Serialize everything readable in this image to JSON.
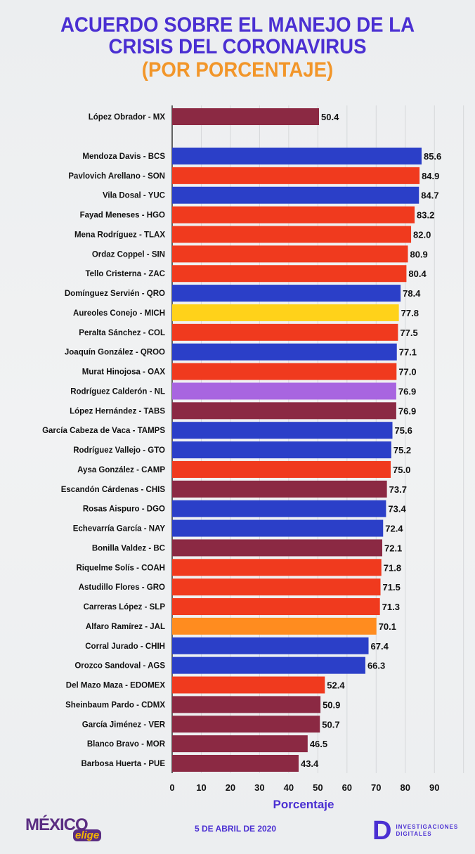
{
  "chart_data": {
    "type": "bar",
    "orientation": "horizontal",
    "title": [
      "ACUERDO SOBRE EL MANEJO DE LA",
      "CRISIS DEL CORONAVIRUS"
    ],
    "subtitle": "(POR PORCENTAJE)",
    "xlabel": "Porcentaje",
    "xlim": [
      0,
      90
    ],
    "xticks": [
      "0",
      "10",
      "20",
      "30",
      "40",
      "50",
      "60",
      "70",
      "80",
      "90"
    ],
    "grid": true,
    "highlight": {
      "label": "López Obrador - MX",
      "value": 50.4,
      "color": "#8b2943"
    },
    "bars": [
      {
        "label": "Mendoza Davis - BCS",
        "value": 85.6,
        "color": "#2b3fc8"
      },
      {
        "label": "Pavlovich Arellano - SON",
        "value": 84.9,
        "color": "#f03a1e"
      },
      {
        "label": "Vila Dosal - YUC",
        "value": 84.7,
        "color": "#2b3fc8"
      },
      {
        "label": "Fayad Meneses - HGO",
        "value": 83.2,
        "color": "#f03a1e"
      },
      {
        "label": "Mena Rodríguez - TLAX",
        "value": 82.0,
        "color": "#f03a1e"
      },
      {
        "label": "Ordaz Coppel - SIN",
        "value": 80.9,
        "color": "#f03a1e"
      },
      {
        "label": "Tello Cristerna - ZAC",
        "value": 80.4,
        "color": "#f03a1e"
      },
      {
        "label": "Domínguez Servién - QRO",
        "value": 78.4,
        "color": "#2b3fc8"
      },
      {
        "label": "Aureoles Conejo - MICH",
        "value": 77.8,
        "color": "#ffd21a"
      },
      {
        "label": "Peralta Sánchez - COL",
        "value": 77.5,
        "color": "#f03a1e"
      },
      {
        "label": "Joaquín González - QROO",
        "value": 77.1,
        "color": "#2b3fc8"
      },
      {
        "label": "Murat Hinojosa - OAX",
        "value": 77.0,
        "color": "#f03a1e"
      },
      {
        "label": "Rodríguez Calderón - NL",
        "value": 76.9,
        "color": "#a865e0"
      },
      {
        "label": "López Hernández - TABS",
        "value": 76.9,
        "color": "#8b2943"
      },
      {
        "label": "García Cabeza de Vaca - TAMPS",
        "value": 75.6,
        "color": "#2b3fc8"
      },
      {
        "label": "Rodríguez Vallejo - GTO",
        "value": 75.2,
        "color": "#2b3fc8"
      },
      {
        "label": "Aysa González - CAMP",
        "value": 75.0,
        "color": "#f03a1e"
      },
      {
        "label": "Escandón Cárdenas - CHIS",
        "value": 73.7,
        "color": "#8b2943"
      },
      {
        "label": "Rosas Aispuro - DGO",
        "value": 73.4,
        "color": "#2b3fc8"
      },
      {
        "label": "Echevarría García - NAY",
        "value": 72.4,
        "color": "#2b3fc8"
      },
      {
        "label": "Bonilla Valdez - BC",
        "value": 72.1,
        "color": "#8b2943"
      },
      {
        "label": "Riquelme Solís - COAH",
        "value": 71.8,
        "color": "#f03a1e"
      },
      {
        "label": "Astudillo Flores - GRO",
        "value": 71.5,
        "color": "#f03a1e"
      },
      {
        "label": "Carreras López - SLP",
        "value": 71.3,
        "color": "#f03a1e"
      },
      {
        "label": "Alfaro Ramírez - JAL",
        "value": 70.1,
        "color": "#ff8c1f"
      },
      {
        "label": "Corral Jurado - CHIH",
        "value": 67.4,
        "color": "#2b3fc8"
      },
      {
        "label": "Orozco Sandoval - AGS",
        "value": 66.3,
        "color": "#2b3fc8"
      },
      {
        "label": "Del Mazo Maza - EDOMEX",
        "value": 52.4,
        "color": "#f03a1e"
      },
      {
        "label": "Sheinbaum Pardo - CDMX",
        "value": 50.9,
        "color": "#8b2943"
      },
      {
        "label": "García Jiménez - VER",
        "value": 50.7,
        "color": "#8b2943"
      },
      {
        "label": "Blanco Bravo - MOR",
        "value": 46.5,
        "color": "#8b2943"
      },
      {
        "label": "Barbosa Huerta - PUE",
        "value": 43.4,
        "color": "#8b2943"
      }
    ]
  },
  "footer": {
    "date": "5 DE ABRIL DE 2020",
    "logo_left": {
      "main": "MÉXICO",
      "sub": "elige"
    },
    "logo_right": {
      "mark": "D",
      "line1": "INVESTIGACIONES",
      "line2": "DIGITALES"
    }
  }
}
